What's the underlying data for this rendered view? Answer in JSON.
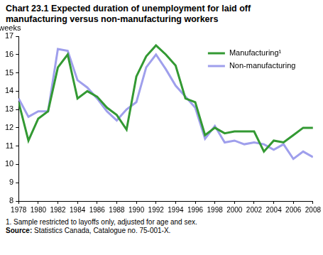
{
  "chart_data": {
    "type": "line",
    "title": "Chart 23.1 Expected duration of unemployment for laid off manufacturing versus non-manufacturing workers",
    "y_label": "weeks",
    "x": [
      1978,
      1979,
      1980,
      1981,
      1982,
      1983,
      1984,
      1985,
      1986,
      1987,
      1988,
      1989,
      1990,
      1991,
      1992,
      1993,
      1994,
      1995,
      1996,
      1997,
      1998,
      1999,
      2000,
      2001,
      2002,
      2003,
      2004,
      2005,
      2006,
      2007,
      2008
    ],
    "series": [
      {
        "name": "Manufacturing¹",
        "color": "#339933",
        "marker": "none",
        "values": [
          13.4,
          11.3,
          12.5,
          12.9,
          15.3,
          16.0,
          13.6,
          14.0,
          13.7,
          13.1,
          12.7,
          11.9,
          14.8,
          15.9,
          16.5,
          16.0,
          15.4,
          13.6,
          13.4,
          11.6,
          12.0,
          11.7,
          11.8,
          11.8,
          11.8,
          10.7,
          11.3,
          11.2,
          11.6,
          12.0,
          12.0
        ]
      },
      {
        "name": "Non-manufacturing",
        "color": "#9f9fec",
        "marker": "none",
        "values": [
          13.6,
          12.6,
          12.9,
          12.9,
          16.3,
          16.2,
          14.6,
          14.2,
          13.6,
          12.9,
          12.4,
          13.0,
          13.4,
          15.3,
          16.0,
          15.2,
          14.3,
          13.7,
          13.1,
          11.4,
          12.1,
          11.2,
          11.3,
          11.1,
          11.2,
          11.1,
          10.8,
          11.1,
          10.3,
          10.7,
          10.4
        ]
      }
    ],
    "xlim": [
      1978,
      2008
    ],
    "xticks": [
      1978,
      1980,
      1982,
      1984,
      1986,
      1988,
      1990,
      1992,
      1994,
      1996,
      1998,
      2000,
      2002,
      2004,
      2006,
      2008
    ],
    "ylim": [
      8,
      17
    ],
    "yticks": [
      8,
      9,
      10,
      11,
      12,
      13,
      14,
      15,
      16,
      17
    ],
    "grid": false,
    "legend": "top right",
    "footnote": "1. Sample restricted to layoffs only, adjusted for age and sex.",
    "source": "Source: Statistics Canada, Catalogue no. 75-001-X."
  }
}
